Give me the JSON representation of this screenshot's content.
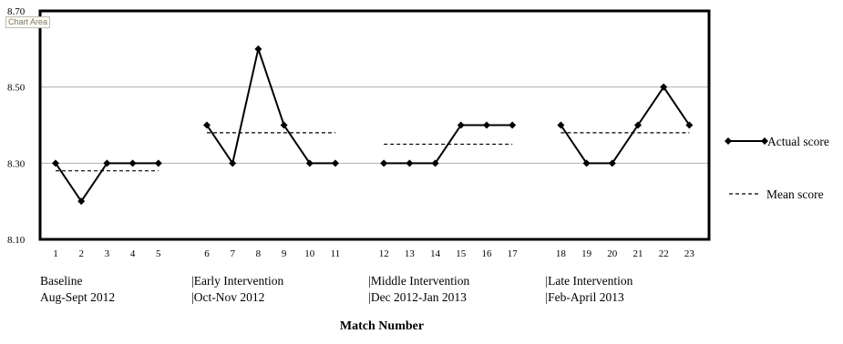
{
  "tooltip": "Chart Area",
  "chart_data": {
    "type": "line",
    "xlabel": "Match Number",
    "ylabel": "",
    "ylim": [
      8.1,
      8.7
    ],
    "yticks": [
      "8.10",
      "8.30",
      "8.50",
      "8.70"
    ],
    "grid": true,
    "legend_position": "right",
    "phases": [
      {
        "label_line1": "Baseline",
        "label_line2": "Aug-Sept 2012",
        "x": [
          1,
          2,
          3,
          4,
          5
        ],
        "actual": [
          8.3,
          8.2,
          8.3,
          8.3,
          8.3
        ],
        "mean": 8.28
      },
      {
        "label_line1": "|Early Intervention",
        "label_line2": "|Oct-Nov 2012",
        "x": [
          6,
          7,
          8,
          9,
          10,
          11
        ],
        "actual": [
          8.4,
          8.3,
          8.6,
          8.4,
          8.3,
          8.3
        ],
        "mean": 8.38
      },
      {
        "label_line1": "|Middle Intervention",
        "label_line2": "|Dec 2012-Jan 2013",
        "x": [
          12,
          13,
          14,
          15,
          16,
          17
        ],
        "actual": [
          8.3,
          8.3,
          8.3,
          8.4,
          8.4,
          8.4
        ],
        "mean": 8.35
      },
      {
        "label_line1": "|Late Intervention",
        "label_line2": "|Feb-April 2013",
        "x": [
          18,
          19,
          20,
          21,
          22,
          23
        ],
        "actual": [
          8.4,
          8.3,
          8.3,
          8.4,
          8.5,
          8.4
        ],
        "mean": 8.38
      }
    ],
    "series": [
      {
        "name": "Actual score",
        "style": "solid-diamond",
        "color": "#000000"
      },
      {
        "name": "Mean score",
        "style": "dashed",
        "color": "#000000"
      }
    ]
  }
}
